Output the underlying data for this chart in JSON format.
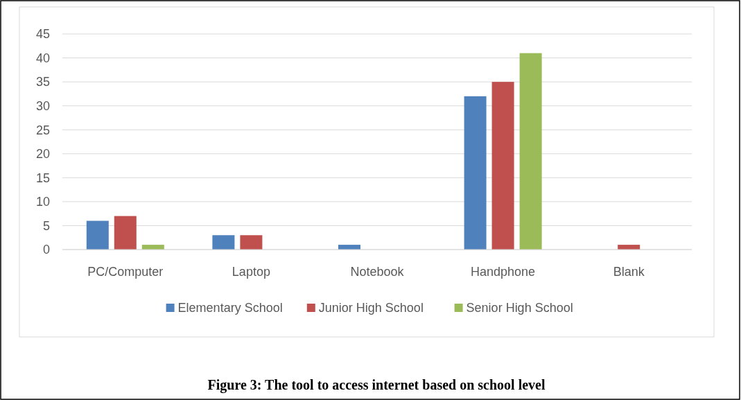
{
  "chart_data": {
    "type": "bar",
    "categories": [
      "PC/Computer",
      "Laptop",
      "Notebook",
      "Handphone",
      "Blank"
    ],
    "series": [
      {
        "name": "Elementary School",
        "color": "#4f81bd",
        "values": [
          6,
          3,
          1,
          32,
          0
        ]
      },
      {
        "name": "Junior High School",
        "color": "#c0504d",
        "values": [
          7,
          3,
          0,
          35,
          1
        ]
      },
      {
        "name": "Senior High School",
        "color": "#9bbb59",
        "values": [
          1,
          0,
          0,
          41,
          0
        ]
      }
    ],
    "ylim": [
      0,
      45
    ],
    "yticks": [
      0,
      5,
      10,
      15,
      20,
      25,
      30,
      35,
      40,
      45
    ],
    "grid": "y",
    "legend": "bottom",
    "annotations": [
      "Figure 3: The tool to access internet based on school level"
    ]
  }
}
